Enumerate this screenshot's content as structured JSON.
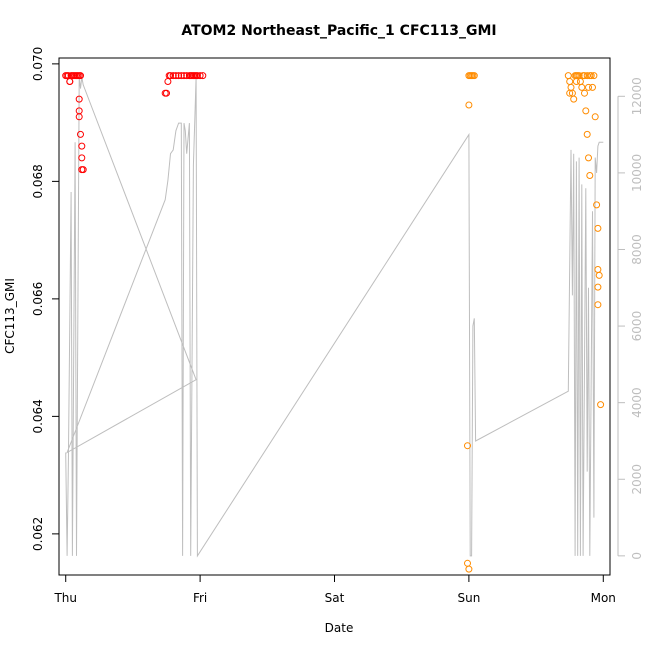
{
  "chart_data": {
    "type": "scatter",
    "title": "ATOM2 Northeast_Pacific_1 CFC113_GMI",
    "xlabel": "Date",
    "ylabel": "CFC113_GMI",
    "x_ticks": [
      "Thu",
      "Fri",
      "Sat",
      "Sun",
      "Mon"
    ],
    "x_range": [
      -0.05,
      4.05
    ],
    "y_ticks": [
      0.062,
      0.064,
      0.066,
      0.068,
      0.07
    ],
    "y_range": [
      0.0613,
      0.0701
    ],
    "y2_ticks": [
      0,
      2000,
      4000,
      6000,
      8000,
      10000,
      12000
    ],
    "y2_range": [
      -500,
      13000
    ],
    "grid": false,
    "series": [
      {
        "color": "#ff0000",
        "points": [
          [
            0.0,
            0.0698
          ],
          [
            0.01,
            0.0698
          ],
          [
            0.02,
            0.0698
          ],
          [
            0.03,
            0.0697
          ],
          [
            0.04,
            0.0698
          ],
          [
            0.05,
            0.0698
          ],
          [
            0.06,
            0.0698
          ],
          [
            0.07,
            0.0698
          ],
          [
            0.08,
            0.0698
          ],
          [
            0.09,
            0.0698
          ],
          [
            0.1,
            0.0698
          ],
          [
            0.11,
            0.0698
          ],
          [
            0.03,
            0.0697
          ],
          [
            0.1,
            0.0694
          ],
          [
            0.1,
            0.0692
          ],
          [
            0.1,
            0.0691
          ],
          [
            0.11,
            0.0688
          ],
          [
            0.12,
            0.0686
          ],
          [
            0.12,
            0.0684
          ],
          [
            0.13,
            0.0682
          ],
          [
            0.12,
            0.0682
          ],
          [
            0.74,
            0.0695
          ],
          [
            0.75,
            0.0695
          ],
          [
            0.76,
            0.0697
          ],
          [
            0.77,
            0.0698
          ],
          [
            0.78,
            0.0698
          ],
          [
            0.8,
            0.0698
          ],
          [
            0.82,
            0.0698
          ],
          [
            0.84,
            0.0698
          ],
          [
            0.86,
            0.0698
          ],
          [
            0.88,
            0.0698
          ],
          [
            0.9,
            0.0698
          ],
          [
            0.92,
            0.0698
          ],
          [
            0.93,
            0.0698
          ],
          [
            0.94,
            0.0698
          ],
          [
            0.95,
            0.0698
          ],
          [
            0.96,
            0.0698
          ],
          [
            0.97,
            0.0698
          ],
          [
            0.98,
            0.0698
          ],
          [
            1.0,
            0.0698
          ],
          [
            1.02,
            0.0698
          ]
        ]
      },
      {
        "color": "#ff8c00",
        "points": [
          [
            3.0,
            0.0698
          ],
          [
            3.01,
            0.0698
          ],
          [
            3.02,
            0.0698
          ],
          [
            3.03,
            0.0698
          ],
          [
            3.04,
            0.0698
          ],
          [
            3.0,
            0.0693
          ],
          [
            2.99,
            0.0635
          ],
          [
            2.99,
            0.0615
          ],
          [
            3.0,
            0.0614
          ],
          [
            3.74,
            0.0698
          ],
          [
            3.75,
            0.0697
          ],
          [
            3.76,
            0.0696
          ],
          [
            3.77,
            0.0695
          ],
          [
            3.78,
            0.0694
          ],
          [
            3.79,
            0.0698
          ],
          [
            3.8,
            0.0698
          ],
          [
            3.81,
            0.0698
          ],
          [
            3.82,
            0.0698
          ],
          [
            3.83,
            0.0697
          ],
          [
            3.84,
            0.0696
          ],
          [
            3.85,
            0.0698
          ],
          [
            3.86,
            0.0698
          ],
          [
            3.87,
            0.0692
          ],
          [
            3.88,
            0.0698
          ],
          [
            3.89,
            0.0696
          ],
          [
            3.9,
            0.0698
          ],
          [
            3.91,
            0.0698
          ],
          [
            3.92,
            0.0696
          ],
          [
            3.93,
            0.0698
          ],
          [
            3.88,
            0.0688
          ],
          [
            3.89,
            0.0684
          ],
          [
            3.9,
            0.0681
          ],
          [
            3.94,
            0.0691
          ],
          [
            3.95,
            0.0676
          ],
          [
            3.96,
            0.0672
          ],
          [
            3.96,
            0.0665
          ],
          [
            3.97,
            0.0664
          ],
          [
            3.96,
            0.0662
          ],
          [
            3.96,
            0.0659
          ],
          [
            3.98,
            0.0642
          ],
          [
            3.8,
            0.0697
          ],
          [
            3.86,
            0.0695
          ],
          [
            3.75,
            0.0695
          ]
        ]
      }
    ],
    "secondary_line": {
      "color": "#bebebe",
      "points": [
        [
          0.0,
          2700
        ],
        [
          0.01,
          0
        ],
        [
          0.02,
          2500
        ],
        [
          0.04,
          9500
        ],
        [
          0.05,
          0
        ],
        [
          0.07,
          10800
        ],
        [
          0.08,
          0
        ],
        [
          0.1,
          12500
        ],
        [
          0.11,
          12200
        ],
        [
          0.12,
          12500
        ],
        [
          0.13,
          12300
        ],
        [
          0.97,
          4600
        ],
        [
          0.01,
          2700
        ],
        [
          0.74,
          9300
        ],
        [
          0.76,
          9800
        ],
        [
          0.78,
          10500
        ],
        [
          0.8,
          10600
        ],
        [
          0.82,
          11100
        ],
        [
          0.84,
          11300
        ],
        [
          0.86,
          11300
        ],
        [
          0.87,
          0
        ],
        [
          0.88,
          11300
        ],
        [
          0.89,
          11100
        ],
        [
          0.9,
          10500
        ],
        [
          0.92,
          11300
        ],
        [
          0.93,
          0
        ],
        [
          0.95,
          10200
        ],
        [
          0.97,
          12500
        ],
        [
          0.98,
          0
        ],
        [
          3.0,
          11000
        ],
        [
          3.01,
          0
        ],
        [
          3.02,
          0
        ],
        [
          3.03,
          6000
        ],
        [
          3.04,
          6200
        ],
        [
          3.05,
          3000
        ],
        [
          3.74,
          4300
        ],
        [
          3.76,
          10600
        ],
        [
          3.77,
          6800
        ],
        [
          3.78,
          10500
        ],
        [
          3.79,
          0
        ],
        [
          3.8,
          10300
        ],
        [
          3.81,
          0
        ],
        [
          3.82,
          10400
        ],
        [
          3.83,
          0
        ],
        [
          3.84,
          9700
        ],
        [
          3.85,
          0
        ],
        [
          3.87,
          9600
        ],
        [
          3.88,
          2200
        ],
        [
          3.89,
          7000
        ],
        [
          3.9,
          0
        ],
        [
          3.92,
          9000
        ],
        [
          3.93,
          1000
        ],
        [
          3.94,
          10400
        ],
        [
          3.95,
          10000
        ],
        [
          3.96,
          10700
        ],
        [
          3.97,
          10800
        ],
        [
          4.0,
          10800
        ]
      ]
    }
  }
}
